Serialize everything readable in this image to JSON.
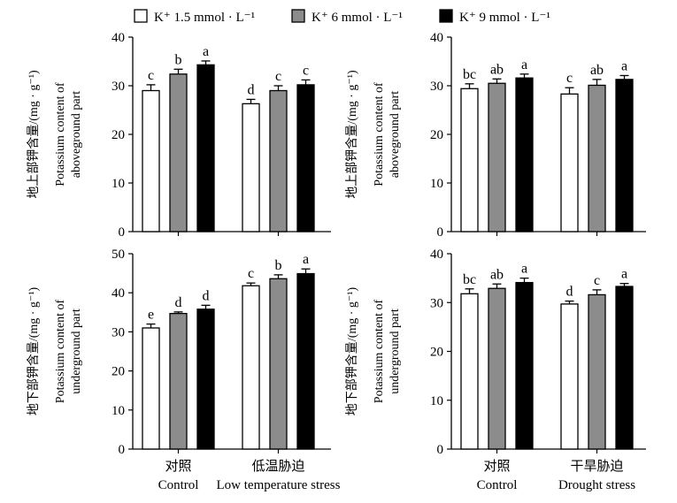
{
  "legend": [
    {
      "label": "K⁺ 1.5 mmol · L⁻¹",
      "color": "#ffffff"
    },
    {
      "label": "K⁺ 6 mmol · L⁻¹",
      "color": "#8c8c8c"
    },
    {
      "label": "K⁺ 9 mmol · L⁻¹",
      "color": "#000000"
    }
  ],
  "chart_data": [
    {
      "type": "bar",
      "ylabel_cn": "地上部钾含量/(mg · g⁻¹)",
      "ylabel_en": [
        "Potassium content of",
        "aboveground part"
      ],
      "ylim": [
        0,
        40
      ],
      "yticks": [
        0,
        10,
        20,
        30,
        40
      ],
      "categories": [
        {
          "cn": "对照",
          "en": "Control"
        },
        {
          "cn": "低温胁迫",
          "en": "Low temperature stress"
        }
      ],
      "series": [
        {
          "values": [
            29.0,
            26.3
          ],
          "errors": [
            1.2,
            0.9
          ],
          "letters": [
            "c",
            "d"
          ]
        },
        {
          "values": [
            32.4,
            29.0
          ],
          "errors": [
            1.0,
            1.0
          ],
          "letters": [
            "b",
            "c"
          ]
        },
        {
          "values": [
            34.3,
            30.2
          ],
          "errors": [
            0.8,
            1.0
          ],
          "letters": [
            "a",
            "c"
          ]
        }
      ]
    },
    {
      "type": "bar",
      "ylabel_cn": "地上部钾含量/(mg · g⁻¹)",
      "ylabel_en": [
        "Potassium content of",
        "aboveground part"
      ],
      "ylim": [
        0,
        40
      ],
      "yticks": [
        0,
        10,
        20,
        30,
        40
      ],
      "categories": [
        {
          "cn": "对照",
          "en": "Control"
        },
        {
          "cn": "干旱胁迫",
          "en": "Drought stress"
        }
      ],
      "series": [
        {
          "values": [
            29.4,
            28.3
          ],
          "errors": [
            1.0,
            1.3
          ],
          "letters": [
            "bc",
            "c"
          ]
        },
        {
          "values": [
            30.5,
            30.1
          ],
          "errors": [
            0.9,
            1.2
          ],
          "letters": [
            "ab",
            "ab"
          ]
        },
        {
          "values": [
            31.6,
            31.3
          ],
          "errors": [
            0.8,
            0.8
          ],
          "letters": [
            "a",
            "a"
          ]
        }
      ]
    },
    {
      "type": "bar",
      "ylabel_cn": "地下部钾含量/(mg · g⁻¹)",
      "ylabel_en": [
        "Potassium content of",
        "underground part"
      ],
      "ylim": [
        0,
        50
      ],
      "yticks": [
        0,
        10,
        20,
        30,
        40,
        50
      ],
      "categories": [
        {
          "cn": "对照",
          "en": "Control"
        },
        {
          "cn": "低温胁迫",
          "en": "Low temperature stress"
        }
      ],
      "series": [
        {
          "values": [
            31.0,
            41.8
          ],
          "errors": [
            1.0,
            0.7
          ],
          "letters": [
            "e",
            "c"
          ]
        },
        {
          "values": [
            34.7,
            43.6
          ],
          "errors": [
            0.4,
            1.0
          ],
          "letters": [
            "d",
            "b"
          ]
        },
        {
          "values": [
            35.8,
            44.9
          ],
          "errors": [
            1.0,
            1.2
          ],
          "letters": [
            "d",
            "a"
          ]
        }
      ]
    },
    {
      "type": "bar",
      "ylabel_cn": "地下部钾含量/(mg · g⁻¹)",
      "ylabel_en": [
        "Potassium content of",
        "underground part"
      ],
      "ylim": [
        0,
        40
      ],
      "yticks": [
        0,
        10,
        20,
        30,
        40
      ],
      "categories": [
        {
          "cn": "对照",
          "en": "Control"
        },
        {
          "cn": "干旱胁迫",
          "en": "Drought stress"
        }
      ],
      "series": [
        {
          "values": [
            31.8,
            29.7
          ],
          "errors": [
            1.0,
            0.6
          ],
          "letters": [
            "bc",
            "d"
          ]
        },
        {
          "values": [
            32.9,
            31.6
          ],
          "errors": [
            0.9,
            1.0
          ],
          "letters": [
            "ab",
            "c"
          ]
        },
        {
          "values": [
            34.1,
            33.3
          ],
          "errors": [
            0.9,
            0.6
          ],
          "letters": [
            "a",
            "a"
          ]
        }
      ]
    }
  ]
}
